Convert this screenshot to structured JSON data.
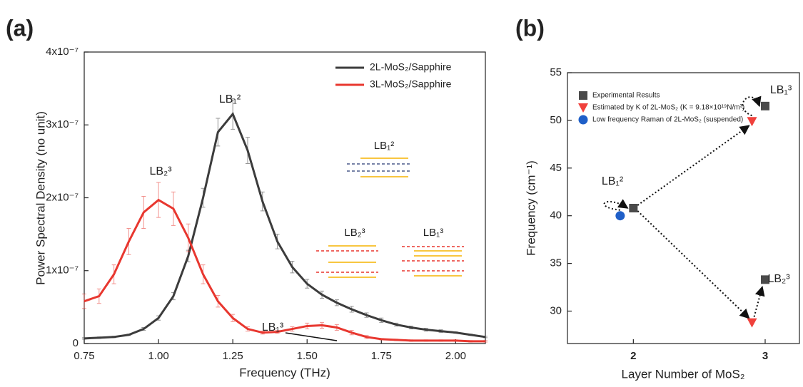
{
  "chart_data": [
    {
      "type": "line",
      "title": "(a)",
      "x_label": "Frequency (THz)",
      "y_label": "Power Spectral Density (no unit)",
      "x": [
        0.75,
        0.8,
        0.85,
        0.9,
        0.95,
        1.0,
        1.05,
        1.1,
        1.15,
        1.2,
        1.25,
        1.3,
        1.35,
        1.4,
        1.45,
        1.5,
        1.55,
        1.6,
        1.65,
        1.7,
        1.75,
        1.8,
        1.85,
        1.9,
        1.95,
        2.0,
        2.05,
        2.1
      ],
      "series": [
        {
          "name": "2L-MoS₂/Sapphire",
          "color": "#3c3c3c",
          "values": [
            7e-09,
            8e-09,
            9e-09,
            1.2e-08,
            2e-08,
            3.5e-08,
            6.5e-08,
            1.2e-07,
            2e-07,
            2.9e-07,
            3.15e-07,
            2.65e-07,
            1.95e-07,
            1.4e-07,
            1.05e-07,
            8.2e-08,
            6.7e-08,
            5.6e-08,
            4.7e-08,
            3.9e-08,
            3.2e-08,
            2.6e-08,
            2.2e-08,
            1.9e-08,
            1.7e-08,
            1.5e-08,
            1.2e-08,
            9e-09
          ],
          "errors": [
            1e-09,
            1e-09,
            1e-09,
            1e-09,
            2e-09,
            3e-09,
            5e-09,
            8e-09,
            1.3e-08,
            1.9e-08,
            2.1e-08,
            1.8e-08,
            1.3e-08,
            1e-08,
            8e-09,
            6e-09,
            5e-09,
            4e-09,
            4e-09,
            3e-09,
            3e-09,
            2e-09,
            2e-09,
            2e-09,
            2e-09,
            1e-09,
            1e-09,
            1e-09
          ]
        },
        {
          "name": "3L-MoS₂/Sapphire",
          "color": "#e8372f",
          "values": [
            5.8e-08,
            6.5e-08,
            9.5e-08,
            1.4e-07,
            1.8e-07,
            1.97e-07,
            1.85e-07,
            1.45e-07,
            9.5e-08,
            5.8e-08,
            3.5e-08,
            2e-08,
            1.5e-08,
            1.6e-08,
            2e-08,
            2.4e-08,
            2.5e-08,
            2.2e-08,
            1.5e-08,
            9e-09,
            6e-09,
            5e-09,
            4e-09,
            4e-09,
            4e-09,
            4e-09,
            3e-09,
            3e-09
          ],
          "errors": [
            1e-08,
            1e-08,
            1.3e-08,
            1.8e-08,
            2.2e-08,
            2.4e-08,
            2.3e-08,
            1.9e-08,
            1.3e-08,
            8e-09,
            5e-09,
            3e-09,
            2e-09,
            2e-09,
            3e-09,
            4e-09,
            4e-09,
            4e-09,
            3e-09,
            2e-09,
            1e-09,
            1e-09,
            1e-09,
            1e-09,
            1e-09,
            1e-09,
            1e-09,
            1e-09
          ]
        }
      ],
      "xlim": [
        0.75,
        2.1
      ],
      "xticks": [
        0.75,
        {
          "value": 1.0,
          "label": "1.00"
        },
        1.25,
        {
          "value": 1.5,
          "label": "1.50"
        },
        1.75,
        {
          "value": 2.0,
          "label": "2.00"
        }
      ],
      "ylim": [
        0,
        4e-07
      ],
      "yticks": [
        0,
        {
          "value": 1e-07,
          "label": "1x10⁻⁷"
        },
        {
          "value": 2e-07,
          "label": "2x10⁻⁷"
        },
        {
          "value": 3e-07,
          "label": "3x10⁻⁷"
        },
        {
          "value": 4e-07,
          "label": "4x10⁻⁷"
        }
      ],
      "legend": "top-right",
      "annotations": [
        "LB₁²",
        "LB₂³",
        "LB₁³"
      ],
      "inset_labels": [
        "LB₁²",
        "LB₂³",
        "LB₁³"
      ]
    },
    {
      "type": "scatter",
      "title": "(b)",
      "x_label": "Layer Number of MoS₂",
      "y_label": "Frequency (cm⁻¹)",
      "series": [
        {
          "name": "Experimental Results",
          "color": "#4a4a4a",
          "marker": "square",
          "x": [
            2,
            3,
            3
          ],
          "values": [
            40.8,
            51.5,
            33.3
          ]
        },
        {
          "name": "Estimated by K of 2L-MoS₂ (K = 9.18×10¹⁹N/m³)",
          "color": "#f0413c",
          "marker": "triangle-down",
          "x": [
            2.9,
            2.9
          ],
          "values": [
            49.9,
            28.8
          ]
        },
        {
          "name": "Low frequency Raman of 2L-MoS₂ (suspended)",
          "color": "#1f5fc8",
          "marker": "circle",
          "x": [
            1.9
          ],
          "values": [
            40.0
          ]
        }
      ],
      "xlim": [
        1.5,
        3.26
      ],
      "xticks": [
        2,
        3
      ],
      "ylim": [
        26.6,
        55
      ],
      "yticks": [
        30,
        35,
        40,
        45,
        50,
        55
      ],
      "legend": "top-left",
      "annotations": [
        "LB₁²",
        "LB₁³",
        "LB₂³"
      ]
    }
  ]
}
